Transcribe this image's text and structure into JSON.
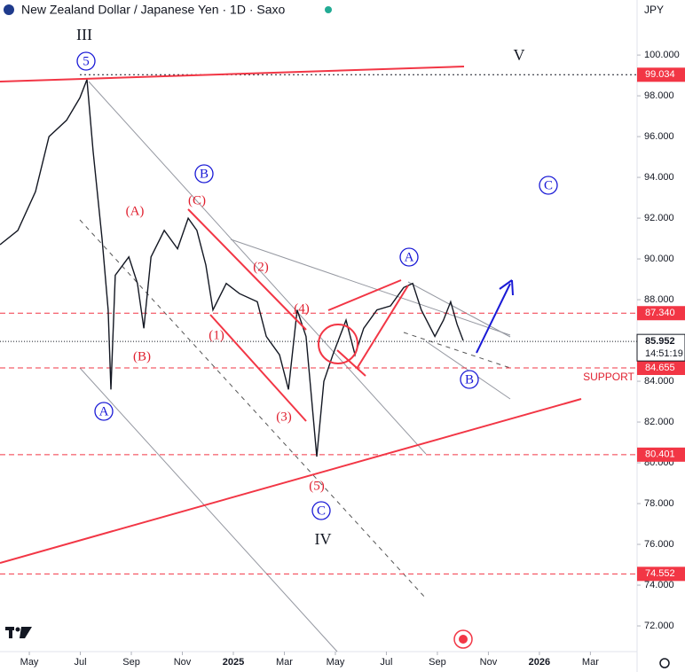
{
  "chart_data": {
    "type": "line",
    "title": "New Zealand Dollar / Japanese Yen · 1D · Saxo",
    "currency": "JPY",
    "color": "#131722",
    "x": [
      -1.15,
      -0.45,
      0.24,
      0.77,
      1.46,
      1.98,
      2.26,
      2.5,
      2.85,
      3.09,
      3.2,
      3.37,
      3.9,
      4.24,
      4.49,
      4.77,
      5.29,
      5.81,
      6.23,
      6.57,
      6.92,
      7.2,
      7.72,
      8.24,
      8.94,
      9.29,
      9.81,
      10.16,
      10.5,
      10.85,
      11.27,
      11.55,
      11.9,
      12.42,
      12.77,
      13.11,
      13.63,
      14.16,
      14.68,
      15.03,
      15.37,
      15.9,
      16.24,
      16.52,
      16.77,
      17.01
    ],
    "values": [
      90.7,
      91.4,
      93.3,
      96.0,
      96.8,
      97.9,
      98.8,
      95.3,
      91.0,
      87.5,
      83.6,
      89.2,
      90.1,
      88.8,
      86.6,
      90.1,
      91.4,
      90.5,
      92.0,
      91.4,
      89.7,
      87.5,
      88.8,
      88.3,
      87.9,
      86.2,
      85.3,
      83.6,
      87.5,
      86.2,
      80.3,
      84.0,
      85.3,
      87.0,
      85.3,
      86.6,
      87.5,
      87.7,
      88.6,
      88.8,
      87.5,
      86.2,
      87.0,
      87.9,
      86.8,
      86.0
    ],
    "xlim": [
      -1.15,
      23.83
    ],
    "xticks": [
      {
        "value": 0,
        "label": "May"
      },
      {
        "value": 2,
        "label": "Jul"
      },
      {
        "value": 4,
        "label": "Sep"
      },
      {
        "value": 6,
        "label": "Nov"
      },
      {
        "value": 8,
        "label": "2025"
      },
      {
        "value": 10,
        "label": "Mar"
      },
      {
        "value": 12,
        "label": "May"
      },
      {
        "value": 14,
        "label": "Jul"
      },
      {
        "value": 16,
        "label": "Sep"
      },
      {
        "value": 18,
        "label": "Nov"
      },
      {
        "value": 20,
        "label": "2026"
      },
      {
        "value": 22,
        "label": "Mar"
      }
    ],
    "ylim": [
      70.74,
      102.7
    ],
    "yticks": [
      {
        "value": 72,
        "label": "72.000"
      },
      {
        "value": 74,
        "label": "74.000"
      },
      {
        "value": 76,
        "label": "76.000"
      },
      {
        "value": 78,
        "label": "78.000"
      },
      {
        "value": 80,
        "label": "80.000"
      },
      {
        "value": 82,
        "label": "82.000"
      },
      {
        "value": 84,
        "label": "84.000"
      },
      {
        "value": 86,
        "label": "86.000"
      },
      {
        "value": 88,
        "label": "88.000"
      },
      {
        "value": 90,
        "label": "90.000"
      },
      {
        "value": 92,
        "label": "92.000"
      },
      {
        "value": 94,
        "label": "94.000"
      },
      {
        "value": 96,
        "label": "96.000"
      },
      {
        "value": 98,
        "label": "98.000"
      },
      {
        "value": 100,
        "label": "100.000"
      }
    ],
    "levels": [
      99.034,
      {
        "value": 87.34,
        "label": "87.340"
      },
      84.655,
      80.401,
      74.552
    ],
    "level_color": "#f23645",
    "last_price": 85.952,
    "countdown": "14:51:19",
    "annotations": [
      {
        "text": "III",
        "color": "#131722"
      },
      {
        "text": "5",
        "color": "#1a1ad6",
        "shape": "circle"
      },
      {
        "text": "V",
        "color": "#131722"
      },
      {
        "text": "B",
        "color": "#1a1ad6",
        "shape": "circle"
      },
      {
        "text": "C",
        "color": "#1a1ad6",
        "shape": "circle"
      },
      {
        "text": "(A)",
        "color": "#e0202f"
      },
      {
        "text": "(C)",
        "color": "#e0202f"
      },
      {
        "text": "(2)",
        "color": "#e0202f"
      },
      {
        "text": "(4)",
        "color": "#e0202f"
      },
      {
        "text": "(1)",
        "color": "#e0202f"
      },
      {
        "text": "(B)",
        "color": "#e0202f"
      },
      {
        "text": "(3)",
        "color": "#e0202f"
      },
      {
        "text": "A",
        "color": "#1a1ad6",
        "shape": "circle"
      },
      {
        "text": "A",
        "color": "#1a1ad6",
        "shape": "circle"
      },
      {
        "text": "B",
        "color": "#1a1ad6",
        "shape": "circle"
      },
      {
        "text": "(5)",
        "color": "#e0202f"
      },
      {
        "text": "C",
        "color": "#1a1ad6",
        "shape": "circle"
      },
      {
        "text": "IV",
        "color": "#131722"
      },
      {
        "text": "SUPPORT",
        "color": "#e0202f"
      }
    ]
  }
}
